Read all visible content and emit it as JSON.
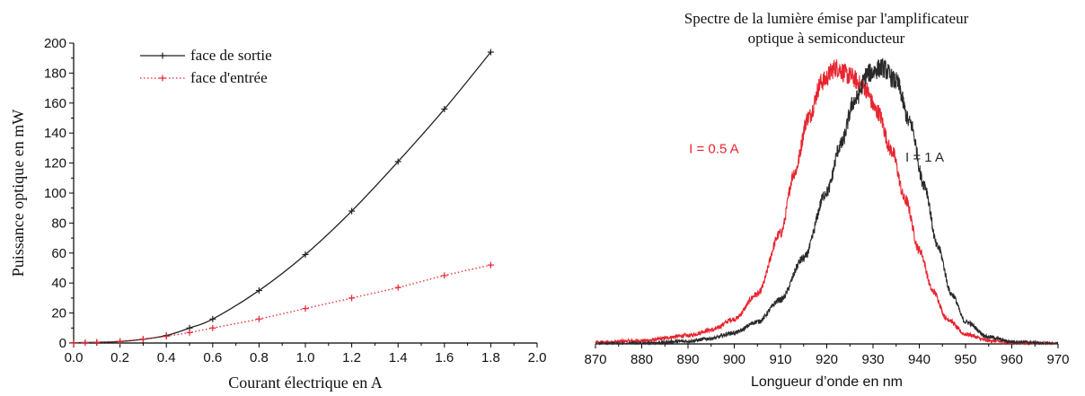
{
  "chart_data": [
    {
      "type": "line",
      "xlabel": "Courant électrique en A",
      "ylabel": "Puissance optique en mW",
      "xlim": [
        0,
        2.0
      ],
      "ylim": [
        0,
        200
      ],
      "x_ticks": [
        "0.0",
        "0.2",
        "0.4",
        "0.6",
        "0.8",
        "1.0",
        "1.2",
        "1.4",
        "1.6",
        "1.8",
        "2.0"
      ],
      "y_ticks": [
        "0",
        "20",
        "40",
        "60",
        "80",
        "100",
        "120",
        "140",
        "160",
        "180",
        "200"
      ],
      "legend_position": "top-left",
      "series": [
        {
          "name": "face de sortie",
          "color": "#222222",
          "line_style": "solid",
          "marker": "plus",
          "x": [
            0.0,
            0.05,
            0.1,
            0.2,
            0.3,
            0.4,
            0.5,
            0.6,
            0.8,
            1.0,
            1.2,
            1.4,
            1.6,
            1.8
          ],
          "y": [
            0.2,
            0.3,
            0.5,
            1.0,
            2.5,
            5,
            10,
            16,
            35,
            59,
            88,
            121,
            156,
            194
          ]
        },
        {
          "name": "face d'entrée",
          "color": "#e8242e",
          "line_style": "dotted",
          "marker": "plus",
          "x": [
            0.0,
            0.05,
            0.1,
            0.2,
            0.3,
            0.4,
            0.5,
            0.6,
            0.8,
            1.0,
            1.2,
            1.4,
            1.6,
            1.8
          ],
          "y": [
            0.2,
            0.3,
            0.5,
            1.0,
            2.5,
            4.5,
            7,
            10,
            16,
            23,
            30,
            37,
            45,
            52
          ]
        }
      ]
    },
    {
      "type": "line",
      "title": "Spectre de la lumière émise par l'amplificateur optique à semiconducteur",
      "title_lines": [
        "Spectre de la lumière émise par l'amplificateur",
        "optique à semiconducteur"
      ],
      "xlabel": "Longueur d’onde en nm",
      "ylabel": "",
      "xlim": [
        870,
        970
      ],
      "ylim": [
        0,
        1.05
      ],
      "x_ticks": [
        "870",
        "880",
        "890",
        "900",
        "910",
        "920",
        "930",
        "940",
        "950",
        "960",
        "970"
      ],
      "y_axis_visible": false,
      "series": [
        {
          "name": "I = 0.5 A",
          "color": "#e8242e",
          "x": [
            870,
            880,
            890,
            895,
            900,
            905,
            910,
            913,
            916,
            919,
            922,
            925,
            928,
            931,
            934,
            937,
            940,
            943,
            946,
            950,
            955,
            960,
            970
          ],
          "y": [
            0.005,
            0.012,
            0.03,
            0.05,
            0.09,
            0.18,
            0.4,
            0.62,
            0.82,
            0.95,
            1.0,
            0.97,
            0.93,
            0.84,
            0.7,
            0.52,
            0.34,
            0.19,
            0.09,
            0.035,
            0.012,
            0.004,
            0.0
          ]
        },
        {
          "name": "I = 1 A",
          "color": "#2a2a2a",
          "x": [
            870,
            880,
            890,
            895,
            900,
            905,
            910,
            915,
            920,
            923,
            926,
            929,
            932,
            935,
            938,
            941,
            944,
            947,
            950,
            955,
            960,
            970
          ],
          "y": [
            0.0,
            0.002,
            0.01,
            0.02,
            0.04,
            0.08,
            0.16,
            0.31,
            0.55,
            0.72,
            0.88,
            0.98,
            1.0,
            0.95,
            0.8,
            0.58,
            0.35,
            0.18,
            0.08,
            0.025,
            0.008,
            0.0
          ]
        }
      ],
      "annotations": [
        {
          "text": "I = 0.5 A",
          "color": "#e8242e",
          "x": 901,
          "y": 0.69
        },
        {
          "text": "I = 1 A",
          "color": "#2a2a2a",
          "x": 937,
          "y": 0.66
        }
      ]
    }
  ]
}
